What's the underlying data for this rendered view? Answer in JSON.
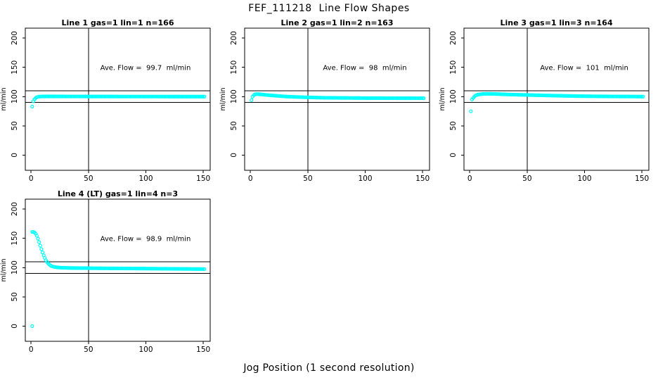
{
  "figure": {
    "title": "FEF_111218  Line Flow Shapes",
    "xlabel": "Jog Position (1 second resolution)",
    "colors": {
      "marker": "#00FFFF",
      "axis": "#000000",
      "background": "#FFFFFF",
      "text": "#000000"
    }
  },
  "chart_data": [
    {
      "type": "scatter",
      "title": "Line 1 gas=1 lin=1 n=166",
      "annotation": "Ave. Flow =  99.7  ml/min",
      "ave_flow_ml_min": 99.7,
      "n": 166,
      "ylabel": "ml/min",
      "xticks": [
        0,
        50,
        100,
        150
      ],
      "yticks": [
        0,
        50,
        100,
        150,
        200
      ],
      "xlim": [
        -5,
        156
      ],
      "ylim": [
        -26,
        217
      ],
      "hlines": [
        90,
        110
      ],
      "vlines": [
        50
      ],
      "marker_color": "#00FFFF",
      "outliers": [
        [
          1,
          83
        ]
      ],
      "trend": [
        [
          2,
          92
        ],
        [
          3,
          95.5
        ],
        [
          4,
          97.5
        ],
        [
          5,
          99
        ],
        [
          7,
          100
        ],
        [
          10,
          100.3
        ],
        [
          20,
          100.3
        ],
        [
          80,
          100.1
        ],
        [
          151,
          100
        ]
      ]
    },
    {
      "type": "scatter",
      "title": "Line 2 gas=1 lin=2 n=163",
      "annotation": "Ave. Flow =  98  ml/min",
      "ave_flow_ml_min": 98,
      "n": 163,
      "ylabel": "ml/min",
      "xticks": [
        0,
        50,
        100,
        150
      ],
      "yticks": [
        0,
        50,
        100,
        150,
        200
      ],
      "xlim": [
        -5,
        156
      ],
      "ylim": [
        -26,
        217
      ],
      "hlines": [
        90,
        110
      ],
      "vlines": [
        50
      ],
      "marker_color": "#00FFFF",
      "outliers": [
        [
          1,
          94
        ]
      ],
      "trend": [
        [
          2,
          100
        ],
        [
          3,
          102.5
        ],
        [
          4,
          103.8
        ],
        [
          6,
          104.3
        ],
        [
          9,
          103.8
        ],
        [
          14,
          102.8
        ],
        [
          20,
          101.8
        ],
        [
          30,
          100.2
        ],
        [
          45,
          99
        ],
        [
          65,
          98
        ],
        [
          100,
          97.5
        ],
        [
          151,
          97.2
        ]
      ]
    },
    {
      "type": "scatter",
      "title": "Line 3 gas=1 lin=3 n=164",
      "annotation": "Ave. Flow =  101  ml/min",
      "ave_flow_ml_min": 101,
      "n": 164,
      "ylabel": "ml/min",
      "xticks": [
        0,
        50,
        100,
        150
      ],
      "yticks": [
        0,
        50,
        100,
        150,
        200
      ],
      "xlim": [
        -5,
        156
      ],
      "ylim": [
        -26,
        217
      ],
      "hlines": [
        90,
        110
      ],
      "vlines": [
        50
      ],
      "marker_color": "#00FFFF",
      "outliers": [
        [
          1,
          75
        ]
      ],
      "trend": [
        [
          2,
          95
        ],
        [
          3,
          97.5
        ],
        [
          4,
          100
        ],
        [
          5,
          101.8
        ],
        [
          7,
          103.3
        ],
        [
          10,
          104.3
        ],
        [
          15,
          104.8
        ],
        [
          22,
          104.5
        ],
        [
          35,
          103.5
        ],
        [
          50,
          102.8
        ],
        [
          70,
          101.8
        ],
        [
          95,
          100.8
        ],
        [
          120,
          100.3
        ],
        [
          151,
          100
        ]
      ]
    },
    {
      "type": "scatter",
      "title": "Line 4 (LT) gas=1 lin=4 n=3",
      "annotation": "Ave. Flow =  98.9  ml/min",
      "ave_flow_ml_min": 98.9,
      "n": 3,
      "ylabel": "ml/min",
      "xticks": [
        0,
        50,
        100,
        150
      ],
      "yticks": [
        0,
        50,
        100,
        150,
        200
      ],
      "xlim": [
        -5,
        156
      ],
      "ylim": [
        -26,
        217
      ],
      "hlines": [
        90,
        110
      ],
      "vlines": [
        50
      ],
      "marker_color": "#00FFFF",
      "outliers": [
        [
          1,
          0
        ]
      ],
      "trend": [
        [
          1,
          161
        ],
        [
          2,
          161
        ],
        [
          3,
          160
        ],
        [
          4,
          158
        ],
        [
          5,
          154.5
        ],
        [
          6,
          149.5
        ],
        [
          7,
          143.5
        ],
        [
          8,
          137.5
        ],
        [
          9,
          131.5
        ],
        [
          10,
          126
        ],
        [
          11,
          121
        ],
        [
          12,
          116.5
        ],
        [
          13,
          112.5
        ],
        [
          14,
          109.5
        ],
        [
          15,
          107
        ],
        [
          16,
          105
        ],
        [
          17,
          103.5
        ],
        [
          18,
          102.5
        ],
        [
          20,
          101.3
        ],
        [
          23,
          100.3
        ],
        [
          27,
          99.8
        ],
        [
          35,
          99.3
        ],
        [
          60,
          98.8
        ],
        [
          100,
          98.3
        ],
        [
          151,
          97.5
        ]
      ]
    }
  ]
}
